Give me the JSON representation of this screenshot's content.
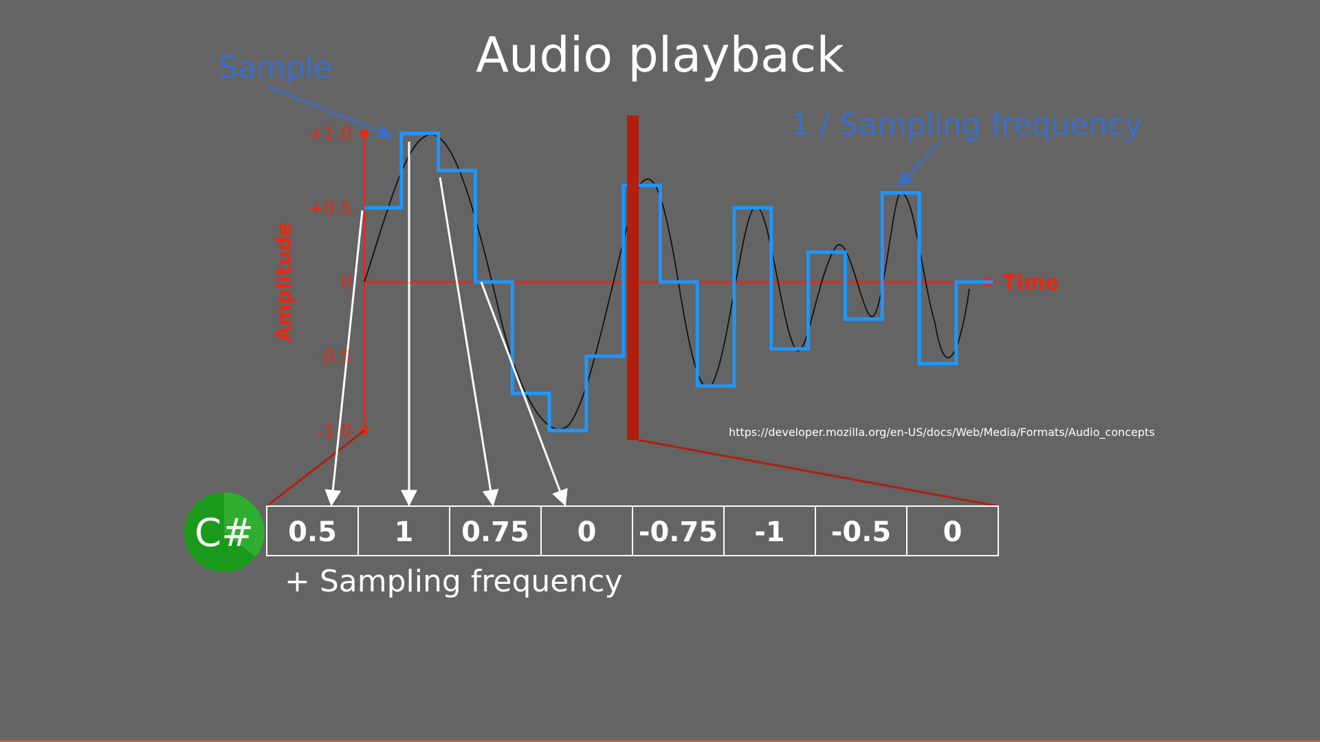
{
  "title": "Audio playback",
  "sample_label": "Sample",
  "period_label": "1 / Sampling frequency",
  "axis": {
    "y_label": "Amplitude",
    "x_label": "Time",
    "y_ticks": [
      "+1.0",
      "+0.5",
      "0",
      "-0.5",
      "-1.0"
    ]
  },
  "source_url": "https://developer.mozilla.org/en-US/docs/Web/Media/Formats/Audio_concepts",
  "samples": [
    "0.5",
    "1",
    "0.75",
    "0",
    "-0.75",
    "-1",
    "-0.5",
    "0"
  ],
  "logo_text": "C#",
  "caption": "+ Sampling frequency",
  "colors": {
    "background": "#646464",
    "sample_blue": "#1e96ff",
    "label_blue": "#3a6fc9",
    "axis_red": "#e22a15",
    "marker_red": "#b31e0e",
    "logo_green": "#1a9a1a"
  },
  "chart_data": {
    "type": "line",
    "y_ticks": [
      1.0,
      0.5,
      0,
      -0.5,
      -1.0
    ],
    "series": [
      {
        "values": [
          0.5,
          1,
          0.75,
          0,
          -0.75,
          -1,
          -0.5,
          0.65,
          0,
          -0.7,
          0.5,
          -0.45,
          0.2,
          -0.25,
          0.6,
          -0.55,
          0
        ]
      }
    ]
  }
}
